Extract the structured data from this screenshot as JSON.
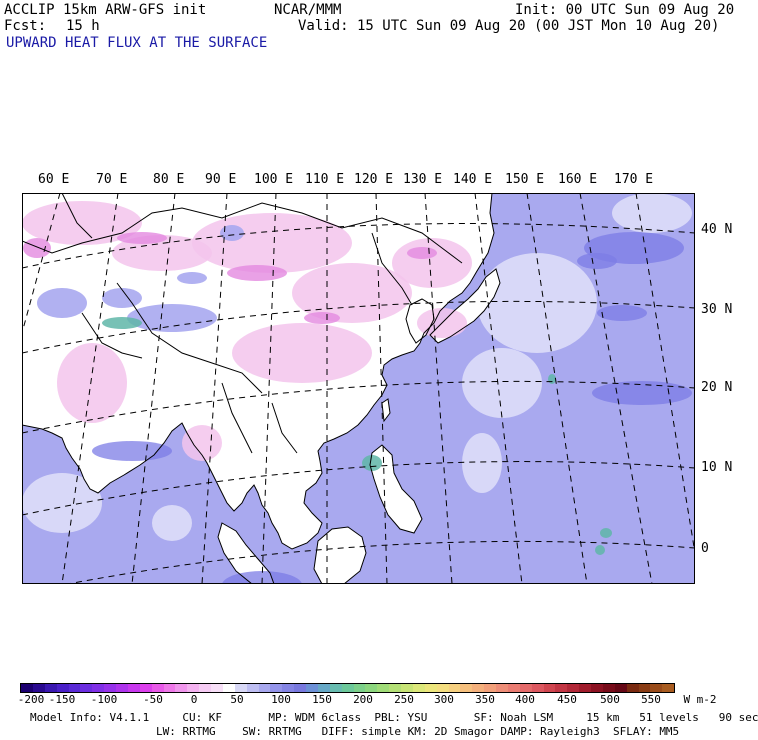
{
  "header": {
    "model": "ACCLIP 15km ARW-GFS init",
    "org": "NCAR/MMM",
    "init": "Init: 00 UTC Sun 09 Aug 20",
    "fcst_label": "Fcst:",
    "fcst_value": "15 h",
    "valid": "Valid: 15 UTC Sun 09 Aug 20 (00 JST Mon 10 Aug 20)",
    "field_title": "UPWARD HEAT FLUX AT THE SURFACE"
  },
  "map": {
    "longitude_labels": [
      "60 E",
      "70 E",
      "80 E",
      "90 E",
      "100 E",
      "110 E",
      "120 E",
      "130 E",
      "140 E",
      "150 E",
      "160 E",
      "170 E"
    ],
    "latitude_labels": [
      "40 N",
      "30 N",
      "20 N",
      "10 N",
      "0"
    ],
    "colors": {
      "ocean": "#a9a9ef",
      "land": "#ffffff",
      "pink": "#f3c4ec",
      "magenta": "#e48ae0",
      "dark_blue": "#7c7ce6",
      "teal": "#5fb6a8",
      "coast": "#000000"
    }
  },
  "colorbar": {
    "labels": [
      "-200",
      "-150",
      "-100",
      "-50",
      "0",
      "50",
      "100",
      "150",
      "200",
      "250",
      "300",
      "350",
      "400",
      "450",
      "500",
      "550"
    ],
    "unit": "W m-2",
    "colors": [
      "#1c0070",
      "#2a0a90",
      "#3a18b0",
      "#4a20c8",
      "#5a2ad6",
      "#6c2ee0",
      "#8030e6",
      "#9632ea",
      "#ae34ec",
      "#c838ee",
      "#dc40ec",
      "#e85ae8",
      "#ee78e8",
      "#f096ec",
      "#f4b2f0",
      "#f6ccf4",
      "#f8e0f8",
      "#ffffff",
      "#d8d8f6",
      "#bebef2",
      "#a8a8ee",
      "#9494ea",
      "#8484e4",
      "#7878de",
      "#6c90d6",
      "#66a8c6",
      "#68bcb0",
      "#6cc89a",
      "#7cd08a",
      "#8cd67e",
      "#a0dc78",
      "#b4e076",
      "#c8e476",
      "#dce87a",
      "#ece67c",
      "#f4de80",
      "#f6d080",
      "#f6c07e",
      "#f4b07c",
      "#f2a07a",
      "#ee8e78",
      "#ea7c72",
      "#e46a6a",
      "#dc5860",
      "#d04650",
      "#c23644",
      "#b22838",
      "#a01c2c",
      "#8c1222",
      "#780c1a",
      "#660816",
      "#7a2a10",
      "#8a3c14",
      "#9a4c1a",
      "#a85c20"
    ]
  },
  "model_info": {
    "line1": "Model Info: V4.1.1     CU: KF       MP: WDM 6class  PBL: YSU       SF: Noah LSM     15 km   51 levels   90 sec",
    "line2": "LW: RRTMG    SW: RRTMG   DIFF: simple KM: 2D Smagor DAMP: Rayleigh3  SFLAY: MM5"
  }
}
